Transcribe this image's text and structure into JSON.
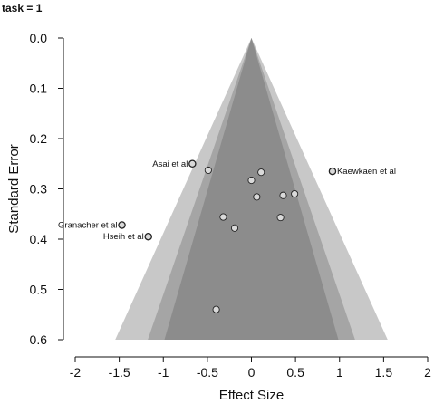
{
  "panel_title": "task = 1",
  "chart_data": {
    "type": "scatter",
    "subtype": "funnel-plot",
    "xlabel": "Effect Size",
    "ylabel": "Standard Error",
    "xlim": [
      -2,
      2
    ],
    "ylim": [
      0.6,
      0.0
    ],
    "y_inverted": true,
    "x_ticks": [
      "-2",
      "-1.5",
      "-1",
      "-0.5",
      "0",
      "0.5",
      "1",
      "1.5",
      "2"
    ],
    "x_tick_values": [
      -2,
      -1.5,
      -1,
      -0.5,
      0,
      0.5,
      1,
      1.5,
      2
    ],
    "y_ticks": [
      "0.0",
      "0.1",
      "0.2",
      "0.3",
      "0.4",
      "0.5",
      "0.6"
    ],
    "y_tick_values": [
      0,
      0.1,
      0.2,
      0.3,
      0.4,
      0.5,
      0.6
    ],
    "grid": false,
    "funnel": {
      "center": 0,
      "z_levels": [
        1.645,
        1.96,
        2.576
      ],
      "colors": [
        "#8c8c8c",
        "#a5a5a5",
        "#c8c8c8"
      ]
    },
    "points": [
      {
        "x": -0.67,
        "y": 0.25,
        "label": "Asai et al"
      },
      {
        "x": 0.92,
        "y": 0.265,
        "label": "Kaewkaen et al"
      },
      {
        "x": -1.47,
        "y": 0.372,
        "label": "Granacher et al"
      },
      {
        "x": -1.17,
        "y": 0.395,
        "label": "Hseih et al"
      },
      {
        "x": -0.49,
        "y": 0.263,
        "label": ""
      },
      {
        "x": 0.11,
        "y": 0.267,
        "label": ""
      },
      {
        "x": 0.0,
        "y": 0.283,
        "label": ""
      },
      {
        "x": 0.06,
        "y": 0.316,
        "label": ""
      },
      {
        "x": 0.36,
        "y": 0.313,
        "label": ""
      },
      {
        "x": 0.49,
        "y": 0.31,
        "label": ""
      },
      {
        "x": -0.32,
        "y": 0.356,
        "label": ""
      },
      {
        "x": 0.33,
        "y": 0.357,
        "label": ""
      },
      {
        "x": -0.19,
        "y": 0.378,
        "label": ""
      },
      {
        "x": -0.4,
        "y": 0.54,
        "label": ""
      }
    ],
    "highlight_labeled_points": true,
    "point_fill": "#d9d9d9",
    "point_stroke": "#222222"
  }
}
